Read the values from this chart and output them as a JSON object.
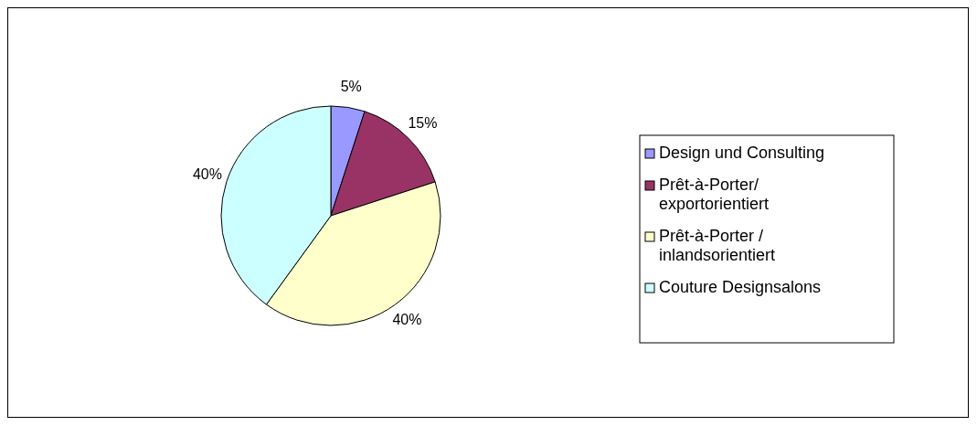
{
  "chart_data": {
    "type": "pie",
    "categories": [
      "Design und Consulting",
      "Prêt-à-Porter/ exportorientiert",
      "Prêt-à-Porter / inlandsorientiert",
      "Couture Designsalons"
    ],
    "values": [
      5,
      15,
      40,
      40
    ],
    "colors": [
      "#9999ff",
      "#993366",
      "#ffffcc",
      "#ccffff"
    ],
    "value_labels": [
      "5%",
      "15%",
      "40%",
      "40%"
    ],
    "legend": "right"
  }
}
